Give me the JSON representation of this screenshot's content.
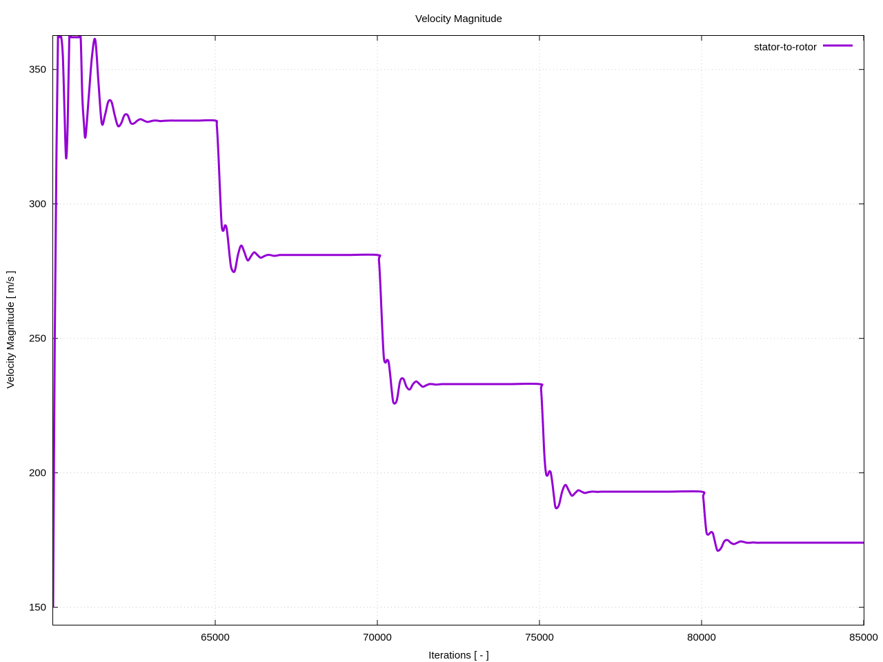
{
  "chart_data": {
    "type": "line",
    "title": "Velocity Magnitude",
    "xlabel": "Iterations [ - ]",
    "ylabel": "Velocity Magnitude [ m/s ]",
    "xlim": [
      60000,
      85000
    ],
    "ylim": [
      143.5,
      362.5
    ],
    "xticks": [
      65000,
      70000,
      75000,
      80000,
      85000
    ],
    "yticks": [
      150,
      200,
      250,
      300,
      350
    ],
    "grid": true,
    "legend_position": "top-right",
    "series": [
      {
        "name": "stator-to-rotor",
        "color": "#9400d3",
        "x": [
          60000,
          60050,
          60100,
          60150,
          60200,
          60250,
          60300,
          60350,
          60400,
          60450,
          60500,
          60550,
          60600,
          60650,
          60700,
          60750,
          60800,
          60850,
          60900,
          60950,
          61000,
          61100,
          61200,
          61300,
          61400,
          61500,
          61600,
          61700,
          61800,
          61900,
          62000,
          62100,
          62200,
          62300,
          62400,
          62500,
          62600,
          62700,
          62800,
          62900,
          63000,
          63100,
          63200,
          63300,
          63400,
          63600,
          63800,
          64000,
          64500,
          65000,
          65050,
          65100,
          65150,
          65200,
          65250,
          65300,
          65350,
          65400,
          65450,
          65500,
          65600,
          65700,
          65800,
          65900,
          66000,
          66100,
          66200,
          66300,
          66400,
          66500,
          66600,
          66700,
          66800,
          66900,
          67000,
          67200,
          67500,
          68000,
          69000,
          70000,
          70050,
          70100,
          70150,
          70200,
          70250,
          70300,
          70350,
          70400,
          70450,
          70500,
          70600,
          70700,
          70800,
          70900,
          71000,
          71100,
          71200,
          71300,
          71400,
          71500,
          71600,
          71700,
          71800,
          71900,
          72000,
          72200,
          72500,
          73000,
          74000,
          75000,
          75050,
          75100,
          75150,
          75200,
          75250,
          75300,
          75350,
          75400,
          75450,
          75500,
          75600,
          75700,
          75800,
          75900,
          76000,
          76100,
          76200,
          76300,
          76400,
          76500,
          76600,
          76700,
          76800,
          76900,
          77000,
          77200,
          77500,
          78000,
          79000,
          80000,
          80050,
          80100,
          80150,
          80200,
          80250,
          80300,
          80350,
          80400,
          80450,
          80500,
          80600,
          80700,
          80800,
          80900,
          81000,
          81100,
          81200,
          81300,
          81400,
          81500,
          81600,
          81700,
          81800,
          81900,
          82000,
          82200,
          82500,
          83000,
          84000,
          85000
        ],
        "y": [
          150,
          248,
          315,
          362,
          362,
          362,
          355,
          335,
          317,
          330,
          362,
          362,
          362,
          362,
          362,
          362,
          362,
          362,
          340,
          330,
          325,
          340,
          355,
          361,
          345,
          330,
          333,
          338,
          338,
          333,
          329,
          330,
          333,
          333,
          330,
          330,
          331,
          331.5,
          331,
          330.5,
          330.7,
          331,
          331,
          330.8,
          330.9,
          331,
          331,
          331,
          331,
          331,
          329,
          318,
          304,
          292,
          290,
          292,
          291,
          286,
          280,
          276,
          275,
          281,
          284.5,
          282,
          279,
          280.5,
          282,
          281,
          280,
          280.5,
          281,
          281,
          280.7,
          280.8,
          281,
          281,
          281,
          281,
          281,
          281,
          279,
          268,
          254,
          243,
          241,
          242,
          241,
          236,
          230,
          226,
          227,
          234,
          235,
          232,
          231,
          233,
          234,
          233,
          232,
          232.5,
          233,
          233,
          232.8,
          232.9,
          233,
          233,
          233,
          233,
          233,
          233,
          231,
          220,
          207,
          200,
          199,
          200.5,
          200,
          196,
          191,
          187,
          188,
          193,
          195.5,
          193.5,
          191.5,
          192.5,
          193.5,
          193,
          192.5,
          192.8,
          193,
          193,
          192.9,
          193,
          193,
          193,
          193,
          193,
          193,
          193,
          191,
          184,
          178,
          177,
          177.5,
          178,
          177.5,
          175,
          172.5,
          171,
          172,
          174.5,
          175,
          174,
          173.5,
          174,
          174.5,
          174.3,
          174,
          174,
          174.1,
          174,
          174,
          174,
          174,
          174,
          174,
          174,
          174,
          174
        ]
      }
    ]
  }
}
